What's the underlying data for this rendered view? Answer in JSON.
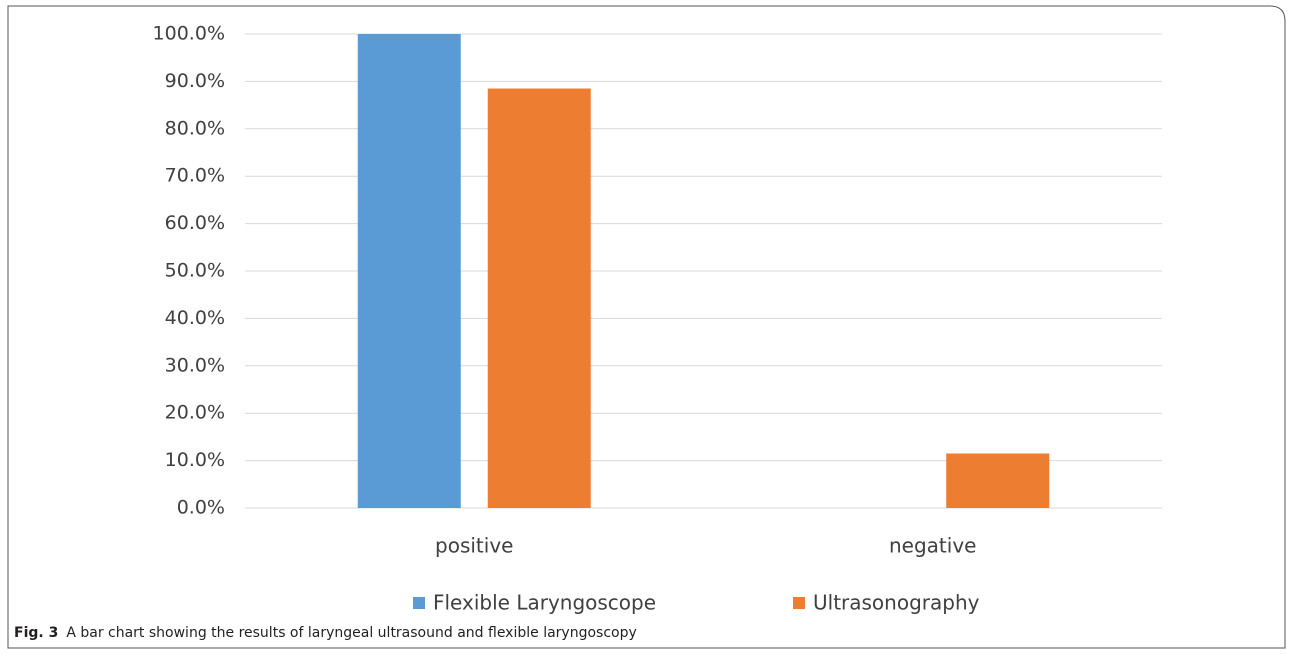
{
  "chart_data": {
    "type": "bar",
    "caption_label": "Fig. 3",
    "caption": "A bar chart showing the results of laryngeal ultrasound and flexible laryngoscopy",
    "categories": [
      "positive",
      "negative"
    ],
    "series": [
      {
        "name": "Flexible Laryngoscope",
        "color": "#5b9bd5",
        "values": [
          100,
          0
        ]
      },
      {
        "name": "Ultrasonography",
        "color": "#ed7d31",
        "values": [
          88.5,
          11.5
        ]
      }
    ],
    "ylim": [
      0,
      100
    ],
    "yticks": [
      {
        "value": 0,
        "label": "0.0%"
      },
      {
        "value": 10,
        "label": "10.0%"
      },
      {
        "value": 20,
        "label": "20.0%"
      },
      {
        "value": 30,
        "label": "30.0%"
      },
      {
        "value": 40,
        "label": "40.0%"
      },
      {
        "value": 50,
        "label": "50.0%"
      },
      {
        "value": 60,
        "label": "60.0%"
      },
      {
        "value": 70,
        "label": "70.0%"
      },
      {
        "value": 80,
        "label": "80.0%"
      },
      {
        "value": 90,
        "label": "90.0%"
      },
      {
        "value": 100,
        "label": "100.0%"
      }
    ],
    "grid": true,
    "legend": "bottom"
  }
}
